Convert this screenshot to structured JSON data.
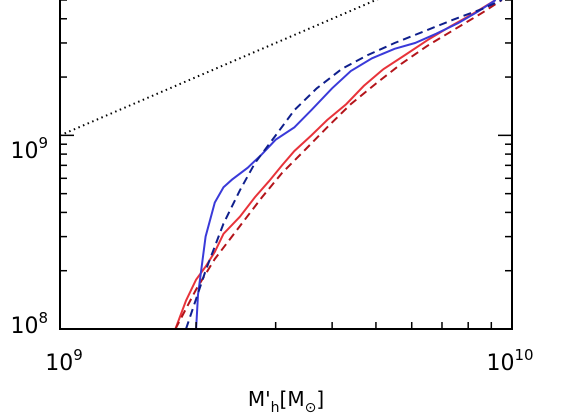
{
  "chart_data": {
    "type": "line",
    "title": "",
    "xlabel": "M'h[M⊙]",
    "xlabel_parts": {
      "main": "M'",
      "sub": "h",
      "bracket_open": "[",
      "unit_main": "M",
      "unit_sub": "⊙",
      "bracket_close": "]"
    },
    "ylabel": "",
    "x_scale": "log",
    "y_scale": "log",
    "xlim": [
      1000000000,
      10000000000
    ],
    "ylim": [
      100000000,
      5000000000
    ],
    "x_tick_labels": [
      {
        "value": 1000000000,
        "base": "10",
        "exp": "9"
      },
      {
        "value": 10000000000,
        "base": "10",
        "exp": "10"
      }
    ],
    "y_tick_labels": [
      {
        "value": 100000000,
        "base": "10",
        "exp": "8"
      },
      {
        "value": 1000000000,
        "base": "10",
        "exp": "9"
      }
    ],
    "grid": false,
    "legend": "none",
    "series": [
      {
        "color": "#000000",
        "dash": "dotted",
        "x": [
          1000000000,
          10000000000
        ],
        "y": [
          1000000000,
          10000000000
        ]
      },
      {
        "color": "#e8333a",
        "dash": "solid",
        "x": [
          1800000000,
          1900000000,
          2000000000,
          2100000000,
          2200000000,
          2300000000,
          2500000000,
          2700000000,
          2900000000,
          3100000000,
          3300000000,
          3600000000,
          3900000000,
          4300000000,
          4700000000,
          5200000000,
          5800000000,
          6500000000,
          7300000000,
          8200000000,
          9200000000
        ],
        "y": [
          100000000,
          140000000,
          180000000,
          210000000,
          250000000,
          310000000,
          380000000,
          480000000,
          580000000,
          700000000,
          830000000,
          1000000000,
          1200000000,
          1450000000,
          1800000000,
          2200000000,
          2600000000,
          3100000000,
          3650000000,
          4250000000,
          5000000000
        ]
      },
      {
        "color": "#b3141a",
        "dash": "dashed",
        "x": [
          1800000000,
          2000000000,
          2200000000,
          2500000000,
          2800000000,
          3100000000,
          3500000000,
          3900000000,
          4400000000,
          5000000000,
          5700000000,
          6500000000,
          7500000000,
          8600000000,
          9500000000
        ],
        "y": [
          100000000,
          160000000,
          230000000,
          340000000,
          480000000,
          640000000,
          850000000,
          1100000000,
          1450000000,
          1850000000,
          2350000000,
          2900000000,
          3550000000,
          4300000000,
          5000000000
        ]
      },
      {
        "color": "#3a3ad9",
        "dash": "solid",
        "x": [
          2000000000,
          2020000000,
          2100000000,
          2200000000,
          2300000000,
          2400000000,
          2600000000,
          2800000000,
          3000000000,
          3300000000,
          3600000000,
          4000000000,
          4400000000,
          4900000000,
          5500000000,
          6100000000,
          6800000000,
          7600000000,
          8400000000,
          9200000000
        ],
        "y": [
          100000000,
          150000000,
          300000000,
          450000000,
          540000000,
          590000000,
          680000000,
          800000000,
          950000000,
          1100000000,
          1350000000,
          1750000000,
          2150000000,
          2500000000,
          2800000000,
          3000000000,
          3350000000,
          3800000000,
          4350000000,
          5000000000
        ]
      },
      {
        "color": "#0f1f8c",
        "dash": "dashed",
        "x": [
          1900000000,
          2100000000,
          2300000000,
          2500000000,
          2700000000,
          3000000000,
          3300000000,
          3700000000,
          4200000000,
          4800000000,
          5500000000,
          6400000000,
          7400000000,
          8600000000,
          9500000000
        ],
        "y": [
          100000000,
          200000000,
          350000000,
          520000000,
          720000000,
          1000000000,
          1350000000,
          1750000000,
          2200000000,
          2600000000,
          3000000000,
          3450000000,
          3950000000,
          4500000000,
          5000000000
        ]
      }
    ]
  }
}
